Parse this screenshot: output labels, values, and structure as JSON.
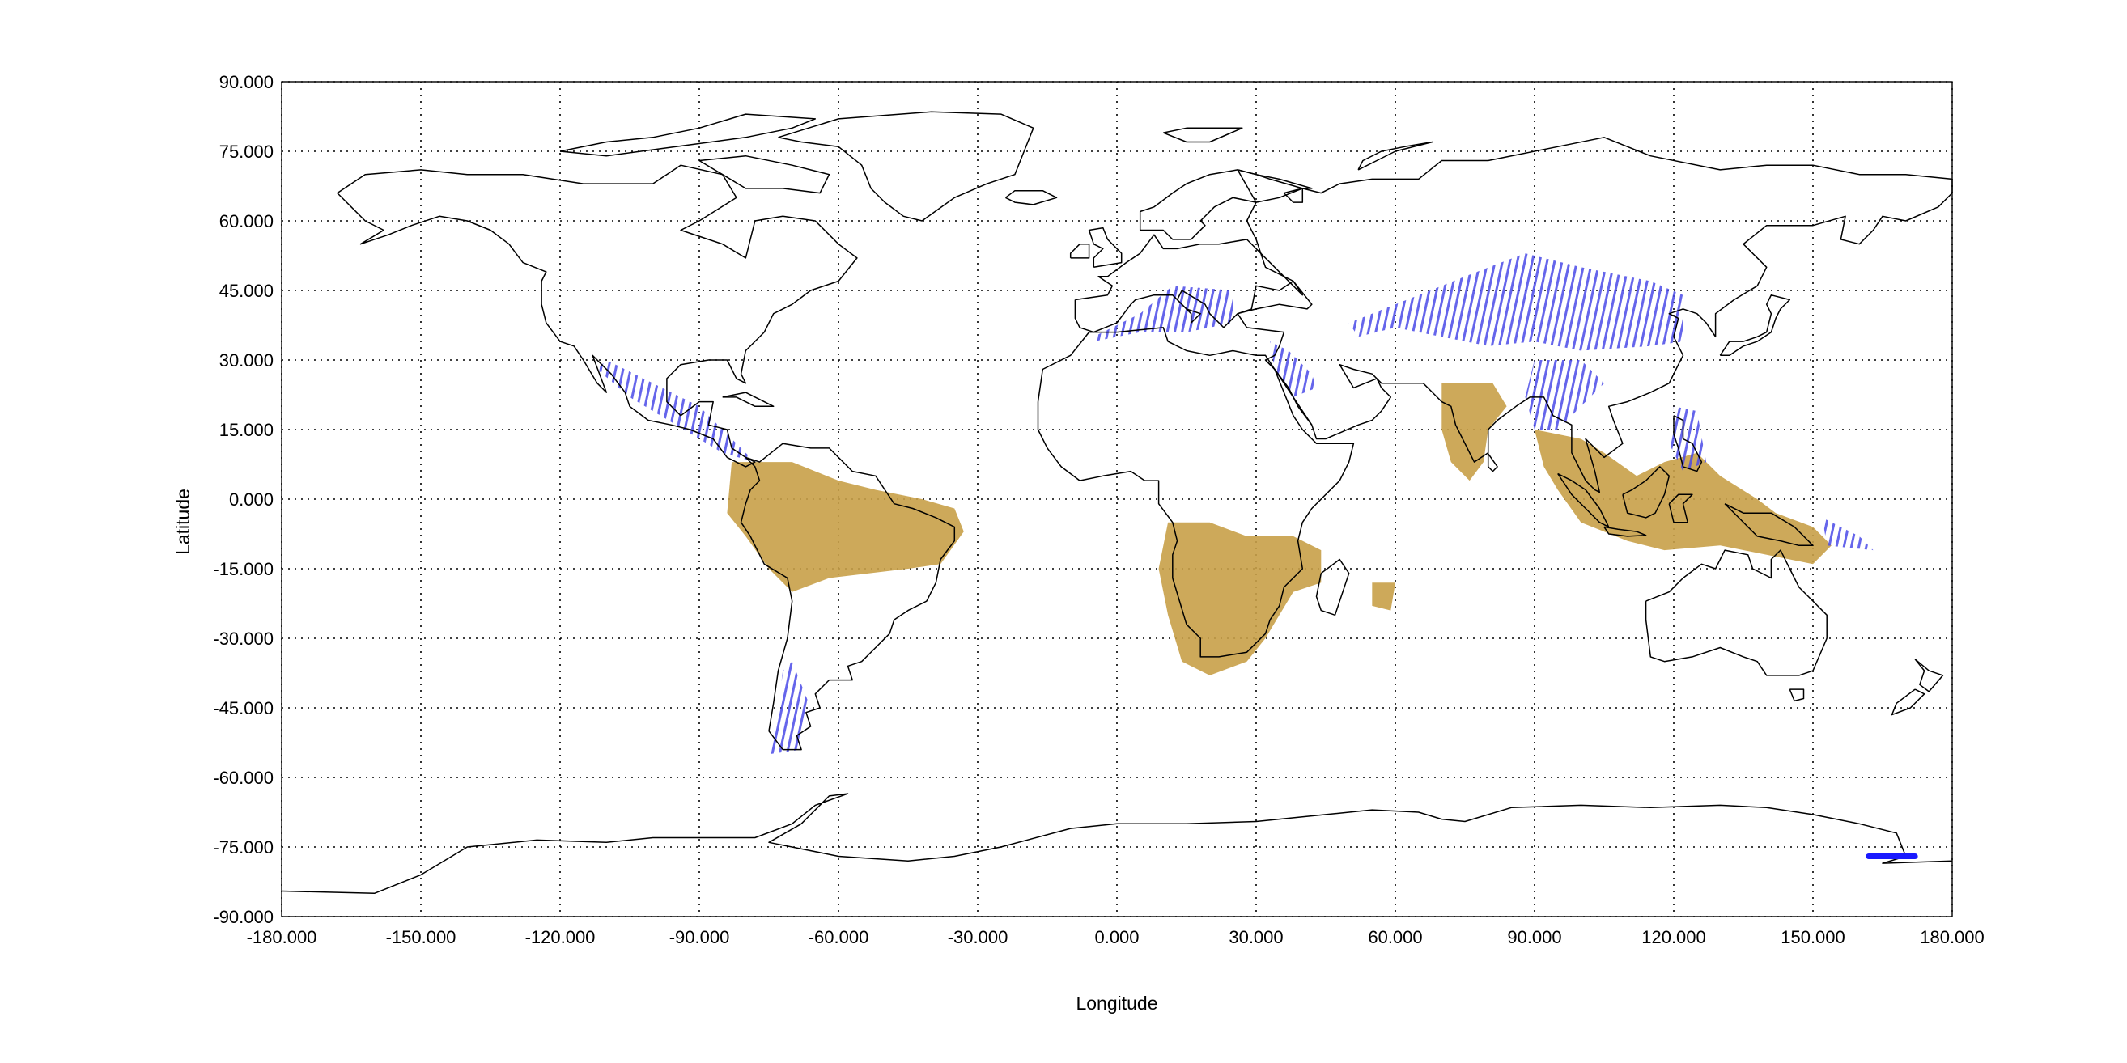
{
  "chart_data": {
    "type": "map",
    "title": "",
    "xlabel": "Longitude",
    "ylabel": "Latitude",
    "xlim": [
      -180,
      180
    ],
    "ylim": [
      -90,
      90
    ],
    "grid": true,
    "xticks": [
      "-180.000",
      "-150.000",
      "-120.000",
      "-90.000",
      "-60.000",
      "-30.000",
      "0.000",
      "30.000",
      "60.000",
      "90.000",
      "120.000",
      "150.000",
      "180.000"
    ],
    "yticks": [
      "90.000",
      "75.000",
      "60.000",
      "45.000",
      "30.000",
      "15.000",
      "0.000",
      "-15.000",
      "-30.000",
      "-45.000",
      "-60.000",
      "-75.000",
      "-90.000"
    ],
    "colors": {
      "filled": "#c8a048",
      "hatched": "#4a4ae8",
      "marker": "#1a1aff",
      "coast": "#000000",
      "grid": "#000000"
    },
    "filled_regions": [
      {
        "region": "South America",
        "polygon": [
          [
            -83,
            8
          ],
          [
            -70,
            8
          ],
          [
            -60,
            4
          ],
          [
            -52,
            2
          ],
          [
            -42,
            0
          ],
          [
            -35,
            -2
          ],
          [
            -33,
            -7
          ],
          [
            -38,
            -14
          ],
          [
            -45,
            -15
          ],
          [
            -62,
            -17
          ],
          [
            -70,
            -20
          ],
          [
            -75,
            -15
          ],
          [
            -80,
            -8
          ],
          [
            -84,
            -3
          ]
        ]
      },
      {
        "region": "Southern Africa",
        "polygon": [
          [
            11,
            -5
          ],
          [
            20,
            -5
          ],
          [
            28,
            -8
          ],
          [
            38,
            -8
          ],
          [
            44,
            -11
          ],
          [
            44,
            -18
          ],
          [
            38,
            -20
          ],
          [
            35,
            -25
          ],
          [
            32,
            -30
          ],
          [
            28,
            -35
          ],
          [
            20,
            -38
          ],
          [
            14,
            -35
          ],
          [
            11,
            -25
          ],
          [
            9,
            -15
          ]
        ]
      },
      {
        "region": "Madagascar",
        "polygon": [
          [
            55,
            -18
          ],
          [
            60,
            -18
          ],
          [
            59,
            -24
          ],
          [
            55,
            -23
          ]
        ]
      },
      {
        "region": "India",
        "polygon": [
          [
            70,
            25
          ],
          [
            81,
            25
          ],
          [
            84,
            20
          ],
          [
            80,
            15
          ],
          [
            79,
            8
          ],
          [
            76,
            4
          ],
          [
            72,
            8
          ],
          [
            70,
            15
          ]
        ]
      },
      {
        "region": "Maritime Southeast Asia",
        "polygon": [
          [
            90,
            15
          ],
          [
            100,
            13
          ],
          [
            105,
            10
          ],
          [
            112,
            5
          ],
          [
            118,
            8
          ],
          [
            125,
            10
          ],
          [
            130,
            5
          ],
          [
            138,
            0
          ],
          [
            142,
            -3
          ],
          [
            150,
            -6
          ],
          [
            154,
            -10
          ],
          [
            150,
            -14
          ],
          [
            140,
            -12
          ],
          [
            130,
            -10
          ],
          [
            118,
            -11
          ],
          [
            110,
            -9
          ],
          [
            100,
            -5
          ],
          [
            95,
            2
          ],
          [
            92,
            7
          ]
        ]
      }
    ],
    "hatched_regions": [
      {
        "region": "Central Asia and China",
        "polygon": [
          [
            50,
            38
          ],
          [
            60,
            42
          ],
          [
            75,
            48
          ],
          [
            88,
            53
          ],
          [
            100,
            50
          ],
          [
            115,
            47
          ],
          [
            122,
            44
          ],
          [
            122,
            34
          ],
          [
            115,
            33
          ],
          [
            100,
            32
          ],
          [
            90,
            34
          ],
          [
            80,
            33
          ],
          [
            70,
            35
          ],
          [
            60,
            37
          ],
          [
            52,
            35
          ]
        ]
      },
      {
        "region": "Mediterranean",
        "polygon": [
          [
            -5,
            35
          ],
          [
            5,
            40
          ],
          [
            12,
            46
          ],
          [
            25,
            45
          ],
          [
            25,
            38
          ],
          [
            15,
            36
          ],
          [
            5,
            36
          ],
          [
            -5,
            34
          ]
        ]
      },
      {
        "region": "Red Sea and Arabia",
        "polygon": [
          [
            33,
            34
          ],
          [
            37,
            32
          ],
          [
            42,
            27
          ],
          [
            43,
            24
          ],
          [
            38,
            22
          ],
          [
            34,
            28
          ]
        ]
      },
      {
        "region": "Himalaya and Indochina",
        "polygon": [
          [
            90,
            30
          ],
          [
            100,
            30
          ],
          [
            105,
            25
          ],
          [
            100,
            20
          ],
          [
            95,
            15
          ],
          [
            90,
            15
          ],
          [
            88,
            22
          ]
        ]
      },
      {
        "region": "Philippines",
        "polygon": [
          [
            120,
            20
          ],
          [
            125,
            19
          ],
          [
            127,
            8
          ],
          [
            122,
            6
          ],
          [
            119,
            12
          ]
        ]
      },
      {
        "region": "Mexico and Central America",
        "polygon": [
          [
            -110,
            30
          ],
          [
            -100,
            25
          ],
          [
            -90,
            20
          ],
          [
            -83,
            13
          ],
          [
            -78,
            8
          ],
          [
            -85,
            10
          ],
          [
            -95,
            16
          ],
          [
            -105,
            22
          ],
          [
            -112,
            28
          ]
        ]
      },
      {
        "region": "Patagonia",
        "polygon": [
          [
            -70,
            -35
          ],
          [
            -66,
            -45
          ],
          [
            -68,
            -54
          ],
          [
            -75,
            -55
          ],
          [
            -73,
            -45
          ],
          [
            -72,
            -37
          ]
        ]
      },
      {
        "region": "Melanesia",
        "polygon": [
          [
            152,
            -4
          ],
          [
            160,
            -8
          ],
          [
            163,
            -11
          ],
          [
            153,
            -10
          ]
        ]
      }
    ],
    "markers": [
      {
        "region": "Ross Ice Shelf",
        "lon_range": [
          162,
          172
        ],
        "lat": -77
      }
    ]
  }
}
